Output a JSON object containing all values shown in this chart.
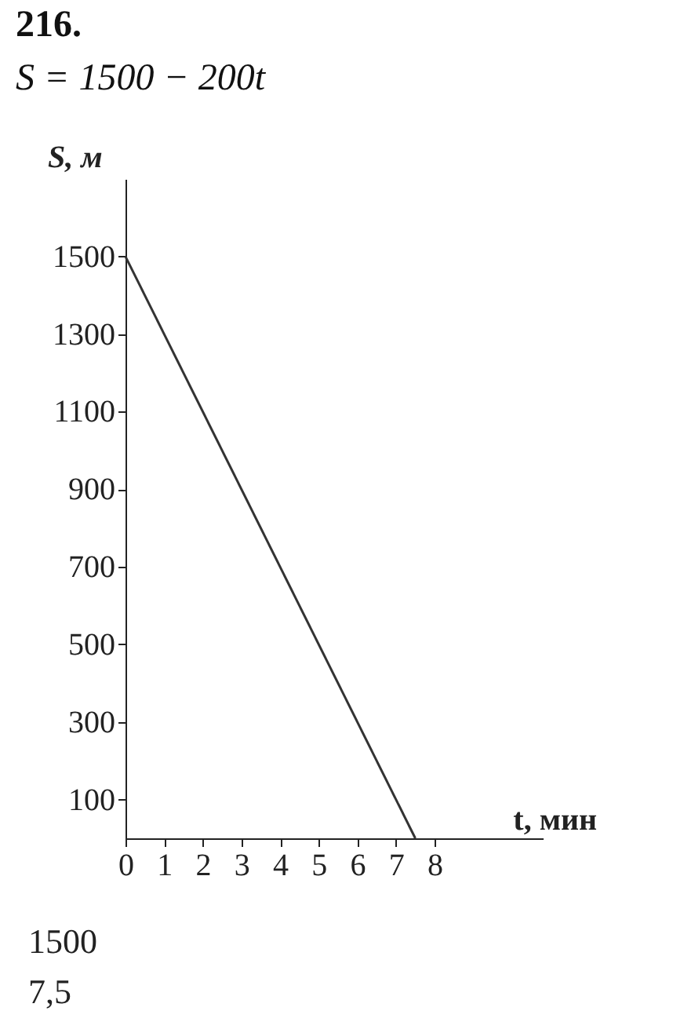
{
  "chart_data": {
    "type": "line",
    "title": "216.",
    "subtitle": "S = 1500 − 200t",
    "xlabel": "t, мин",
    "ylabel": "S, м",
    "x": [
      0,
      7.5
    ],
    "series": [
      {
        "color": "#333333",
        "values": [
          1500,
          0
        ]
      }
    ],
    "xlim": [
      0,
      10.8
    ],
    "xticks": [
      0,
      1,
      2,
      3,
      4,
      5,
      6,
      7,
      8
    ],
    "ylim": [
      0,
      1700
    ],
    "yticks": [
      100,
      300,
      500,
      700,
      900,
      1100,
      1300,
      1500
    ],
    "grid": false,
    "marker": "none",
    "line_style": "solid",
    "annotations": [
      "1500",
      "7,5"
    ]
  }
}
